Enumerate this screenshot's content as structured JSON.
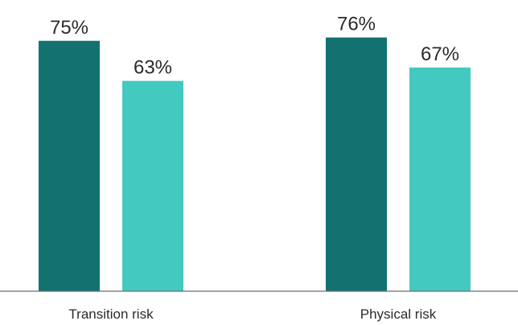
{
  "chart_data": {
    "type": "bar",
    "title": "",
    "xlabel": "",
    "ylabel": "",
    "categories": [
      "Transition risk",
      "Physical risk"
    ],
    "series": [
      {
        "values": [
          75,
          76
        ],
        "color": "#137270"
      },
      {
        "values": [
          63,
          67
        ],
        "color": "#43c9c0"
      }
    ],
    "value_suffix": "%",
    "ylim": [
      0,
      100
    ],
    "grid": false,
    "legend": "none",
    "baseline_color": "#6e6e6e"
  }
}
